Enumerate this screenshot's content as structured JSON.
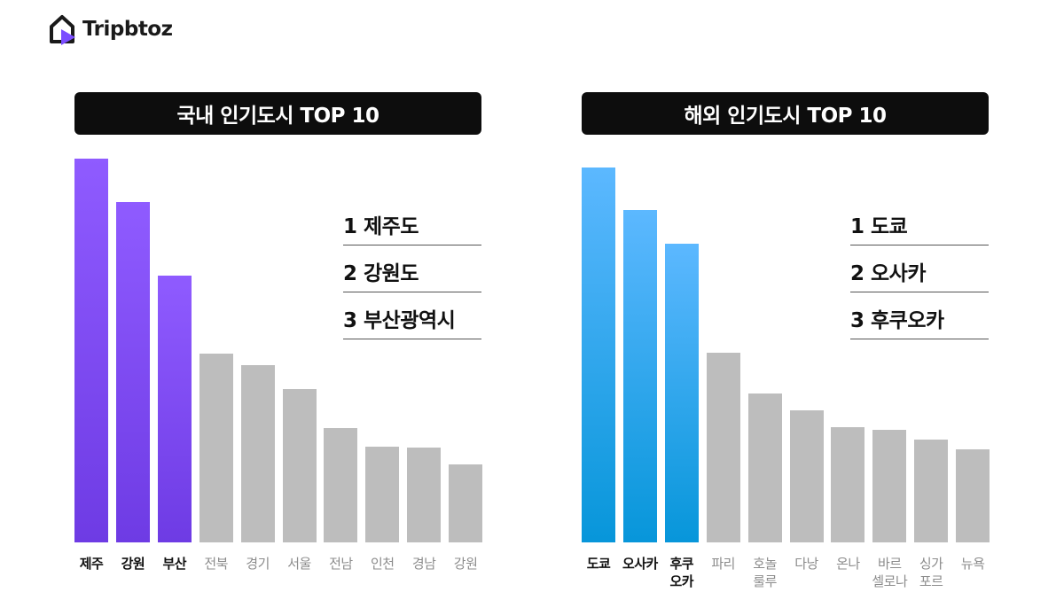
{
  "brand": {
    "name": "Tripbtoz",
    "logo_icon": "tripbtoz-logo-icon"
  },
  "colors": {
    "domestic_top": [
      "#8F5BFF",
      "#6E3BE4"
    ],
    "overseas_top": [
      "#5CB8FF",
      "#0796DA"
    ],
    "other": "#BDBDBD",
    "title_bg": "#0D0D0D"
  },
  "chart_data": [
    {
      "type": "bar",
      "title": "국내 인기도시 TOP 10",
      "categories": [
        "제주",
        "강원",
        "부산",
        "전북",
        "경기",
        "서울",
        "전남",
        "인천",
        "경남",
        "강원"
      ],
      "values": [
        100,
        88.7,
        69.4,
        49.1,
        46.3,
        40.0,
        29.9,
        25.0,
        24.6,
        20.4
      ],
      "highlight_count": 3,
      "ranking": [
        "1 제주도",
        "2 강원도",
        "3 부산광역시"
      ],
      "grid": false,
      "ylim": [
        0,
        100
      ]
    },
    {
      "type": "bar",
      "title": "해외 인기도시 TOP 10",
      "categories": [
        "도쿄",
        "오사카",
        "후쿠\n오카",
        "파리",
        "호놀\n룰루",
        "다낭",
        "온나",
        "바르\n셀로나",
        "싱가\n포르",
        "뉴욕"
      ],
      "values": [
        100,
        88.6,
        79.6,
        50.7,
        39.8,
        35.3,
        30.8,
        30.1,
        27.5,
        24.9
      ],
      "highlight_count": 3,
      "ranking": [
        "1 도쿄",
        "2 오사카",
        "3 후쿠오카"
      ],
      "grid": false,
      "ylim": [
        0,
        100
      ]
    }
  ]
}
